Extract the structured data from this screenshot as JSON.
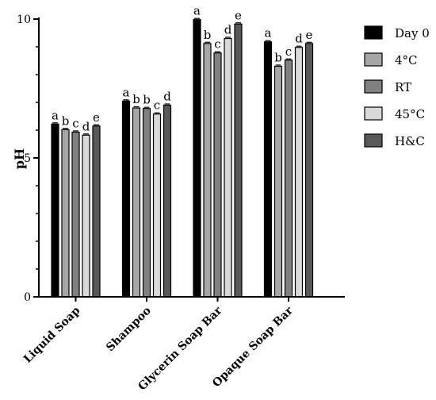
{
  "chart_data": {
    "type": "bar",
    "title": "",
    "xlabel": "",
    "ylabel": "pH",
    "ylim": [
      0,
      10
    ],
    "yticks": [
      0,
      5,
      10
    ],
    "grid": false,
    "legend_position": "right",
    "categories": [
      "Liquid Soap",
      "Shampoo",
      "Glycerin Soap Bar",
      "Opaque Soap Bar"
    ],
    "series": [
      {
        "name": "Day 0",
        "color": "#000000",
        "values": [
          6.22,
          7.05,
          9.98,
          9.18
        ]
      },
      {
        "name": "4°C",
        "color": "#a6a6a6",
        "values": [
          6.02,
          6.8,
          9.12,
          8.3
        ]
      },
      {
        "name": "RT",
        "color": "#808080",
        "values": [
          5.93,
          6.78,
          8.78,
          8.52
        ]
      },
      {
        "name": "45°C",
        "color": "#d9d9d9",
        "values": [
          5.82,
          6.58,
          9.3,
          8.98
        ]
      },
      {
        "name": "H&C",
        "color": "#595959",
        "values": [
          6.15,
          6.9,
          9.82,
          9.12
        ]
      }
    ],
    "significance_letters": [
      [
        "a",
        "b",
        "c",
        "d",
        "e"
      ],
      [
        "a",
        "b",
        "b",
        "c",
        "d"
      ],
      [
        "a",
        "b",
        "c",
        "d",
        "e"
      ],
      [
        "a",
        "b",
        "c",
        "d",
        "e"
      ]
    ]
  }
}
